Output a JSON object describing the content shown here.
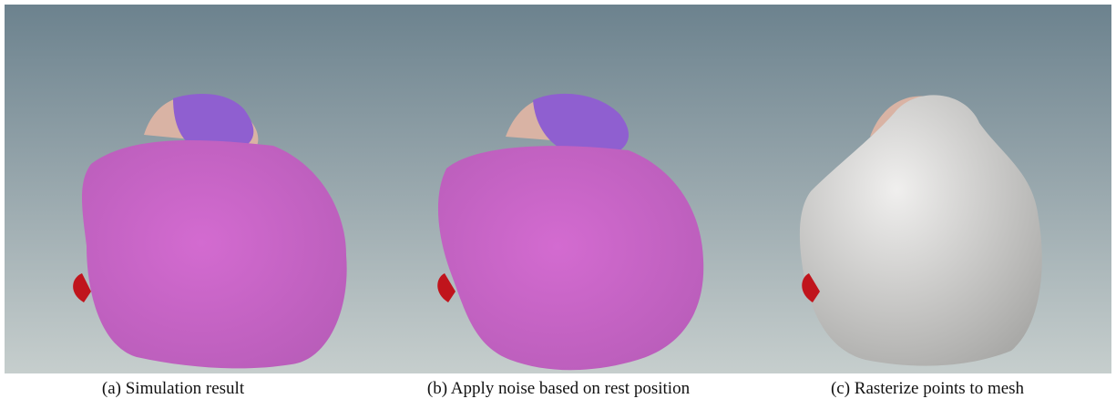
{
  "figure": {
    "panels": [
      {
        "caption": "(a) Simulation result"
      },
      {
        "caption": "(b) Apply noise based on rest position"
      },
      {
        "caption": "(c) Rasterize points to mesh"
      }
    ]
  }
}
